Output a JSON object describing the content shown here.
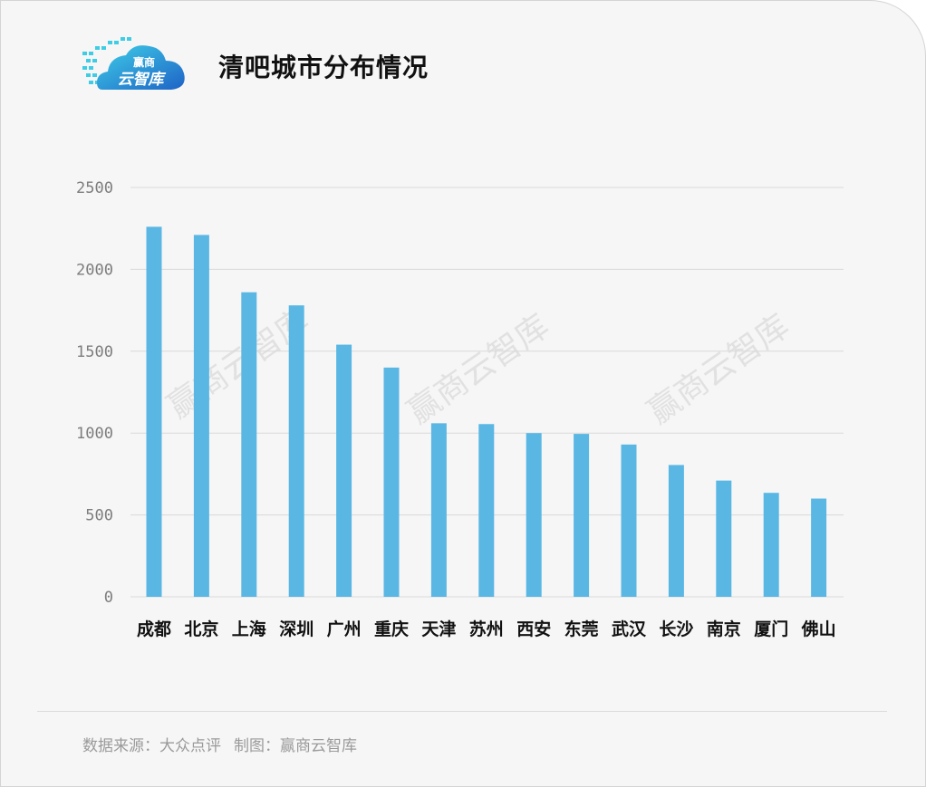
{
  "header": {
    "logo_text_top": "赢商",
    "logo_text_bottom": "云智库",
    "title": "清吧城市分布情况"
  },
  "watermark": "赢商云智库",
  "colors": {
    "bar": "#5ab7e4",
    "grid": "#d9d9d9",
    "logo_dark": "#1e63c6",
    "logo_light": "#3fd0e8"
  },
  "chart_data": {
    "type": "bar",
    "title": "清吧城市分布情况",
    "xlabel": "",
    "ylabel": "",
    "categories": [
      "成都",
      "北京",
      "上海",
      "深圳",
      "广州",
      "重庆",
      "天津",
      "苏州",
      "西安",
      "东莞",
      "武汉",
      "长沙",
      "南京",
      "厦门",
      "佛山"
    ],
    "values": [
      2260,
      2210,
      1860,
      1780,
      1540,
      1400,
      1060,
      1055,
      1000,
      995,
      930,
      805,
      710,
      635,
      600
    ],
    "yticks": [
      "0",
      "500",
      "1000",
      "1500",
      "2000",
      "2500"
    ],
    "ylim": [
      0,
      2500
    ],
    "grid": true,
    "legend": "none"
  },
  "footer": {
    "source": "数据来源：大众点评",
    "credit": "制图：赢商云智库"
  }
}
